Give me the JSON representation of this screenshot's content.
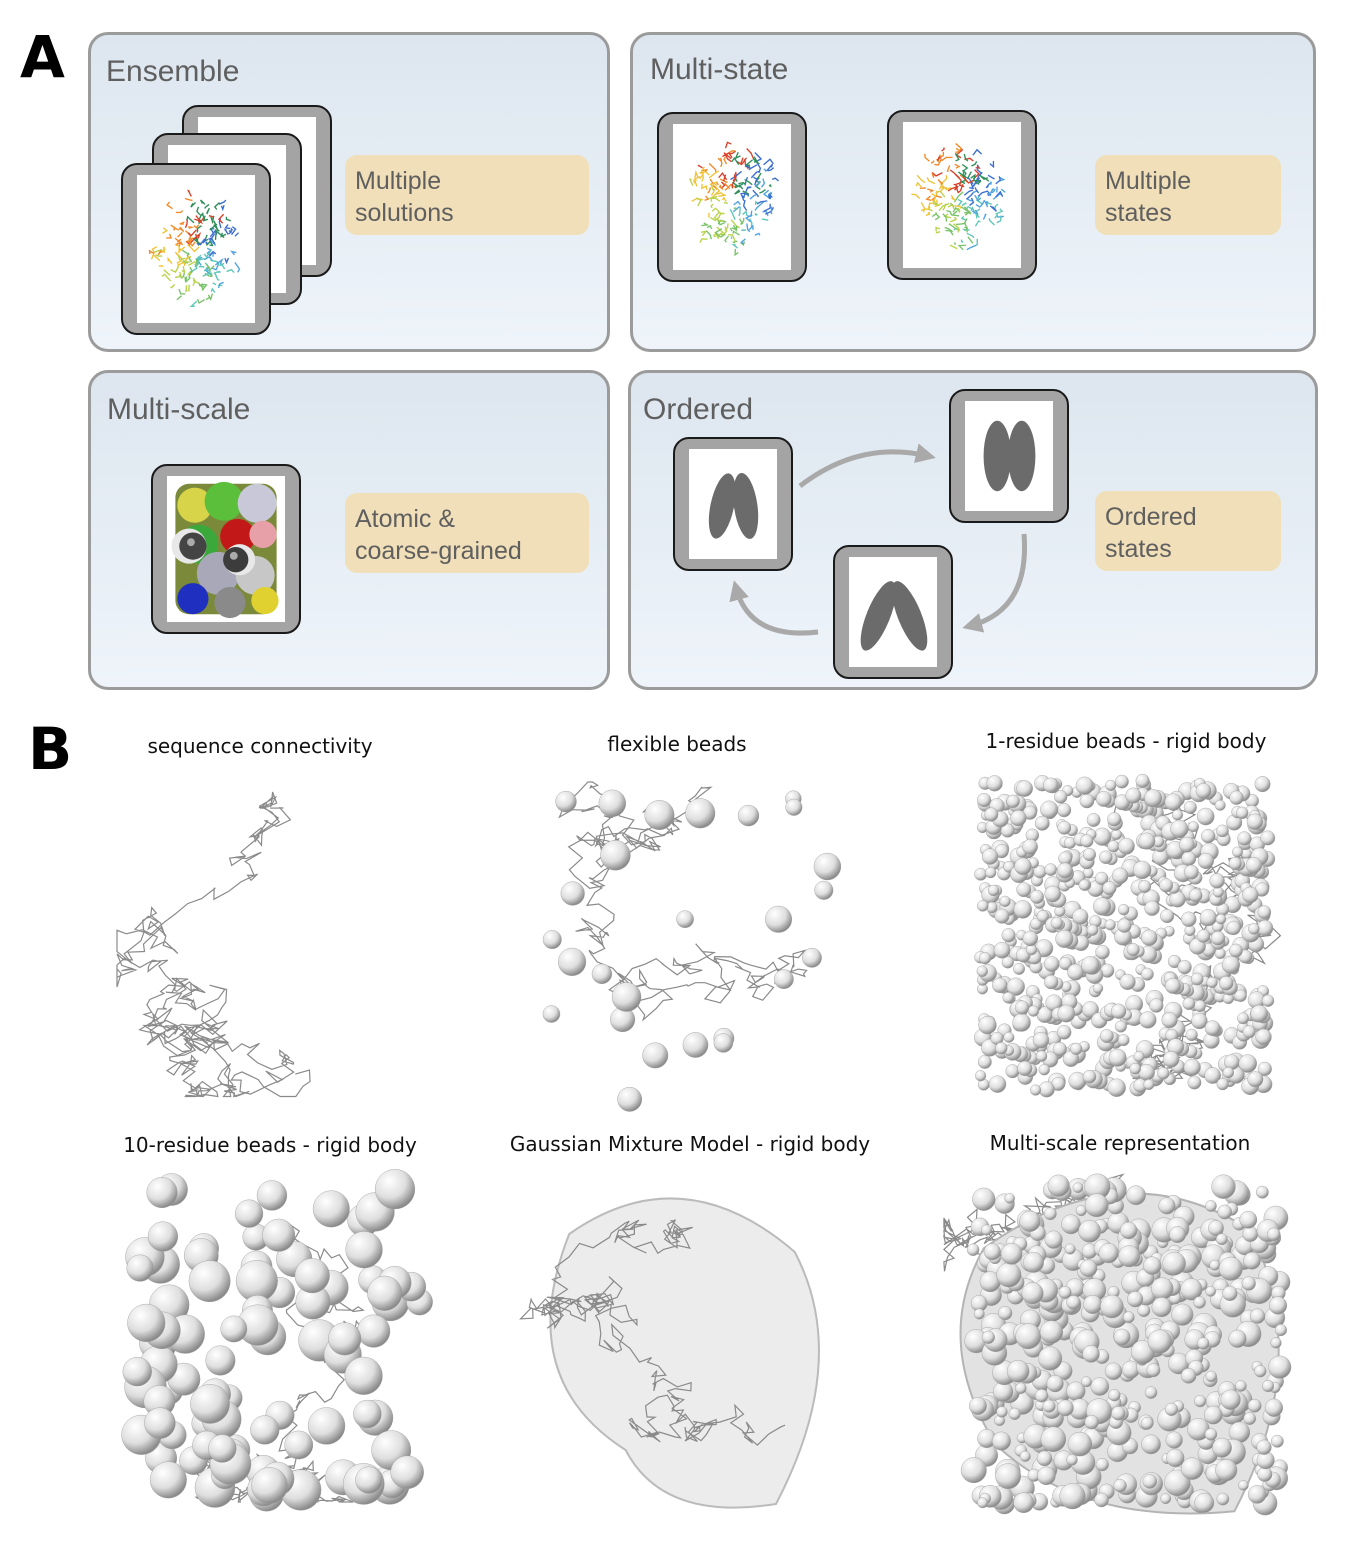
{
  "panel_a": {
    "label": "A",
    "boxes": {
      "ensemble": {
        "title": "Ensemble",
        "tag": [
          "Multiple",
          "solutions"
        ]
      },
      "multi_state": {
        "title": "Multi-state",
        "tag": [
          "Multiple",
          "states"
        ]
      },
      "multi_scale": {
        "title": "Multi-scale",
        "tag": [
          "Atomic &",
          "coarse-grained"
        ]
      },
      "ordered": {
        "title": "Ordered",
        "tag": [
          "Ordered",
          "states"
        ]
      }
    }
  },
  "panel_b": {
    "label": "B",
    "captions": [
      "sequence connectivity",
      "flexible beads",
      "1-residue beads - rigid body",
      "10-residue beads - rigid body",
      "Gaussian Mixture Model - rigid body",
      "Multi-scale representation"
    ]
  },
  "colors": {
    "panel_border": "#9b9b9b",
    "panel_bg_top": "#dde6ef",
    "panel_bg_bottom": "#eef4fa",
    "tag_bg": "#f0dfb8",
    "text_gray": "#5f5f5f",
    "frame_gray": "#a4a4a4",
    "ellipse_gray": "#6b6b6b",
    "arrow_gray": "#a9a9a9"
  }
}
